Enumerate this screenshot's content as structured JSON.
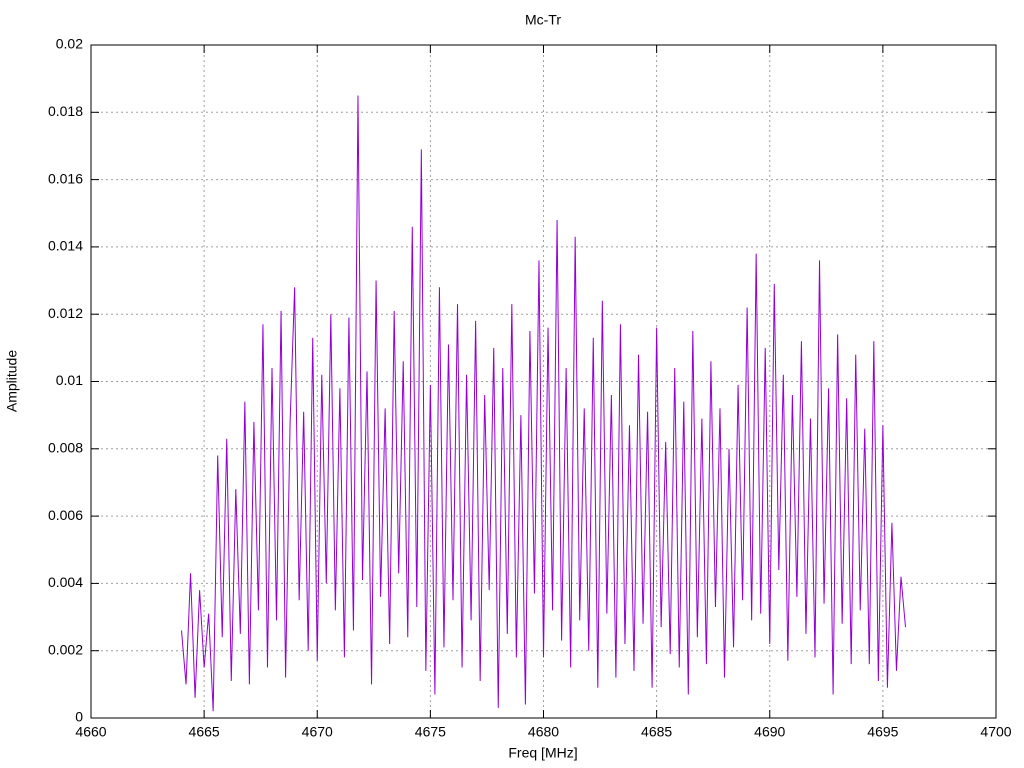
{
  "chart_data": {
    "type": "line",
    "title": "Mc-Tr",
    "x_label": "Freq [MHz]",
    "y_label": "Amplitude",
    "xlim": [
      4660,
      4700
    ],
    "xticks": [
      4660,
      4665,
      4670,
      4675,
      4680,
      4685,
      4690,
      4695,
      4700
    ],
    "ylim": [
      0,
      0.02
    ],
    "yticks": [
      0,
      0.002,
      0.004,
      0.006,
      0.008,
      0.01,
      0.012,
      0.014,
      0.016,
      0.018,
      0.02
    ],
    "grid": true,
    "color": "#9400d3",
    "x": [
      4664,
      4664.2,
      4664.4,
      4664.6,
      4664.8,
      4665,
      4665.2,
      4665.4,
      4665.6,
      4665.8,
      4666,
      4666.2,
      4666.4,
      4666.6,
      4666.8,
      4667,
      4667.2,
      4667.4,
      4667.6,
      4667.8,
      4668,
      4668.2,
      4668.4,
      4668.6,
      4668.8,
      4669,
      4669.2,
      4669.4,
      4669.6,
      4669.8,
      4670,
      4670.2,
      4670.4,
      4670.6,
      4670.8,
      4671,
      4671.2,
      4671.4,
      4671.6,
      4671.8,
      4672,
      4672.2,
      4672.4,
      4672.6,
      4672.8,
      4673,
      4673.2,
      4673.4,
      4673.6,
      4673.8,
      4674,
      4674.2,
      4674.4,
      4674.6,
      4674.8,
      4675,
      4675.2,
      4675.4,
      4675.6,
      4675.8,
      4676,
      4676.2,
      4676.4,
      4676.6,
      4676.8,
      4677,
      4677.2,
      4677.4,
      4677.6,
      4677.8,
      4678,
      4678.2,
      4678.4,
      4678.6,
      4678.8,
      4679,
      4679.2,
      4679.4,
      4679.6,
      4679.8,
      4680,
      4680.2,
      4680.4,
      4680.6,
      4680.8,
      4681,
      4681.2,
      4681.4,
      4681.6,
      4681.8,
      4682,
      4682.2,
      4682.4,
      4682.6,
      4682.8,
      4683,
      4683.2,
      4683.4,
      4683.6,
      4683.8,
      4684,
      4684.2,
      4684.4,
      4684.6,
      4684.8,
      4685,
      4685.2,
      4685.4,
      4685.6,
      4685.8,
      4686,
      4686.2,
      4686.4,
      4686.6,
      4686.8,
      4687,
      4687.2,
      4687.4,
      4687.6,
      4687.8,
      4688,
      4688.2,
      4688.4,
      4688.6,
      4688.8,
      4689,
      4689.2,
      4689.4,
      4689.6,
      4689.8,
      4690,
      4690.2,
      4690.4,
      4690.6,
      4690.8,
      4691,
      4691.2,
      4691.4,
      4691.6,
      4691.8,
      4692,
      4692.2,
      4692.4,
      4692.6,
      4692.8,
      4693,
      4693.2,
      4693.4,
      4693.6,
      4693.8,
      4694,
      4694.2,
      4694.4,
      4694.6,
      4694.8,
      4695,
      4695.2,
      4695.4,
      4695.6,
      4695.8,
      4696
    ],
    "values": [
      0.0026,
      0.001,
      0.0043,
      0.0006,
      0.0038,
      0.0015,
      0.0031,
      0.0002,
      0.0078,
      0.0024,
      0.0083,
      0.0011,
      0.0068,
      0.0025,
      0.0094,
      0.001,
      0.0088,
      0.0032,
      0.0117,
      0.0015,
      0.0104,
      0.0029,
      0.0121,
      0.0012,
      0.0088,
      0.0128,
      0.0035,
      0.0091,
      0.002,
      0.0113,
      0.0017,
      0.0102,
      0.004,
      0.012,
      0.0032,
      0.0098,
      0.0018,
      0.0119,
      0.0026,
      0.0185,
      0.0041,
      0.0103,
      0.001,
      0.013,
      0.0036,
      0.0092,
      0.0022,
      0.0121,
      0.0043,
      0.0106,
      0.0024,
      0.0146,
      0.0033,
      0.0169,
      0.0014,
      0.0099,
      0.0007,
      0.0128,
      0.0021,
      0.0111,
      0.0035,
      0.0123,
      0.0015,
      0.0102,
      0.0029,
      0.0118,
      0.0011,
      0.0096,
      0.0038,
      0.011,
      0.0003,
      0.0104,
      0.0025,
      0.0123,
      0.0018,
      0.009,
      0.0004,
      0.0115,
      0.0037,
      0.0136,
      0.0018,
      0.0116,
      0.0032,
      0.0148,
      0.0023,
      0.0104,
      0.0015,
      0.0143,
      0.0029,
      0.0092,
      0.002,
      0.0113,
      0.0009,
      0.0124,
      0.0031,
      0.0096,
      0.0012,
      0.0117,
      0.0022,
      0.0087,
      0.0014,
      0.0108,
      0.0028,
      0.0091,
      0.0009,
      0.0116,
      0.0027,
      0.0082,
      0.0019,
      0.0104,
      0.0015,
      0.0094,
      0.0007,
      0.0115,
      0.0024,
      0.0089,
      0.0016,
      0.0106,
      0.0033,
      0.0092,
      0.0012,
      0.008,
      0.0021,
      0.0099,
      0.0035,
      0.0122,
      0.0029,
      0.0138,
      0.0031,
      0.011,
      0.0022,
      0.0129,
      0.0044,
      0.0102,
      0.0017,
      0.0096,
      0.0036,
      0.0112,
      0.0025,
      0.0089,
      0.0018,
      0.0136,
      0.0034,
      0.0098,
      0.0007,
      0.0114,
      0.0028,
      0.0095,
      0.0016,
      0.0108,
      0.0032,
      0.0086,
      0.0016,
      0.0112,
      0.0011,
      0.0087,
      0.0009,
      0.0058,
      0.0014,
      0.0042,
      0.0027
    ]
  }
}
